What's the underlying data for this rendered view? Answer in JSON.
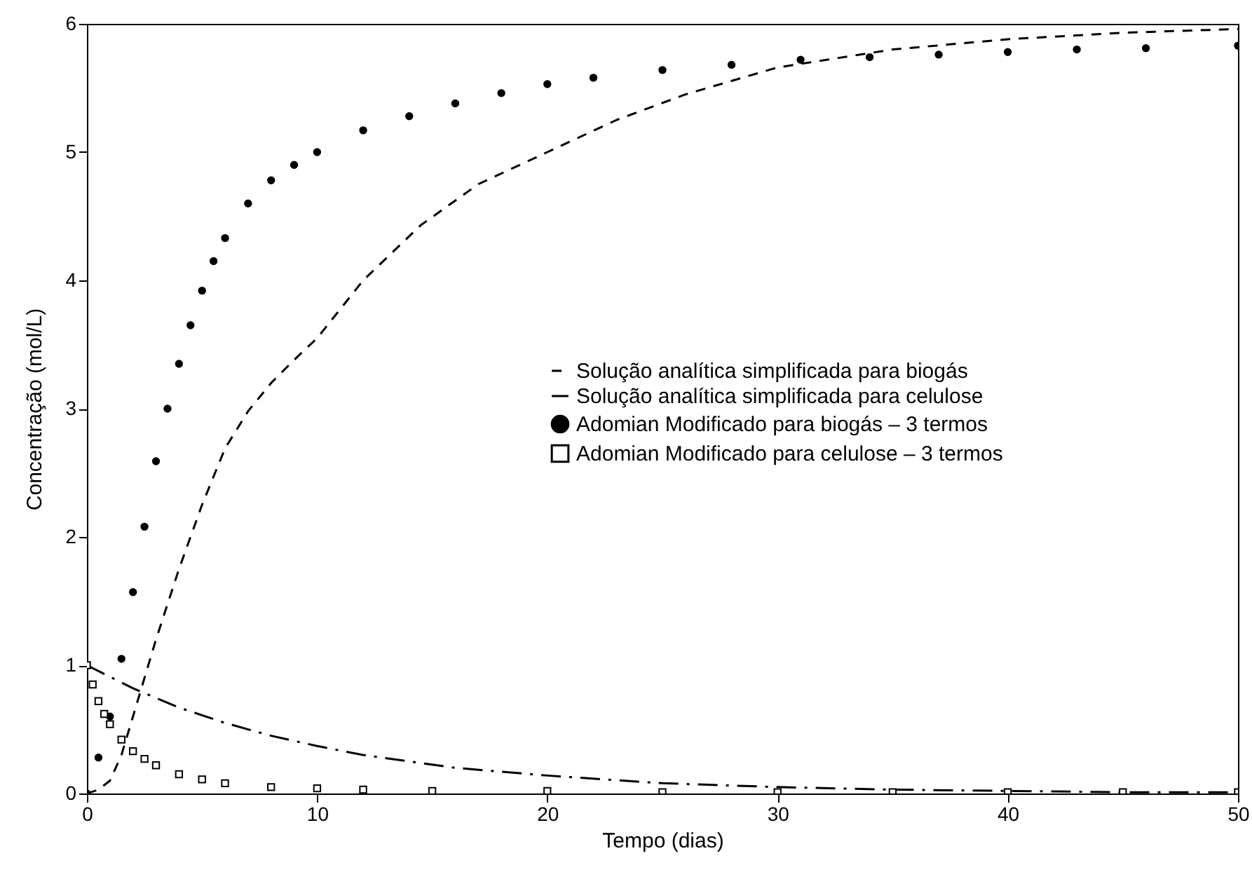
{
  "chart_data": {
    "type": "line",
    "xlabel": "Tempo (dias)",
    "ylabel": "Concentração (mol/L)",
    "xlim": [
      0,
      50
    ],
    "ylim": [
      0,
      6
    ],
    "xticks": [
      0,
      10,
      20,
      30,
      40,
      50
    ],
    "yticks": [
      0,
      1,
      2,
      3,
      4,
      5,
      6
    ],
    "grid": false,
    "legend": "right",
    "series": [
      {
        "name": "Solução analítica simplificada para biogás",
        "type": "line",
        "line_style": "dashed",
        "color": "#000000",
        "x": [
          0,
          0.5,
          1,
          1.5,
          2,
          2.5,
          3,
          4,
          5,
          6,
          7,
          8,
          9,
          10,
          12,
          14.5,
          17,
          20,
          23,
          26,
          30,
          35,
          40,
          45,
          50
        ],
        "values": [
          0,
          0.03,
          0.1,
          0.3,
          0.6,
          0.9,
          1.2,
          1.75,
          2.25,
          2.69,
          2.98,
          3.2,
          3.38,
          3.55,
          4.0,
          4.43,
          4.75,
          5.0,
          5.25,
          5.45,
          5.66,
          5.8,
          5.88,
          5.93,
          5.96
        ]
      },
      {
        "name": "Solução analítica simplificada para celulose",
        "type": "line",
        "line_style": "dashdot",
        "color": "#000000",
        "x": [
          0,
          2,
          4,
          6,
          8,
          10,
          12,
          14,
          16,
          18,
          20,
          25,
          30,
          35,
          40,
          45,
          50
        ],
        "values": [
          1,
          0.82,
          0.67,
          0.55,
          0.45,
          0.37,
          0.3,
          0.25,
          0.2,
          0.17,
          0.14,
          0.08,
          0.05,
          0.03,
          0.02,
          0.01,
          0.01
        ]
      },
      {
        "name": "Adomian Modificado para biogás – 3 termos",
        "type": "scatter",
        "marker": "circle",
        "color": "#000000",
        "x": [
          0,
          0.5,
          1,
          1.5,
          2,
          2.5,
          3,
          3.5,
          4,
          4.5,
          5,
          5.5,
          6,
          7,
          8,
          9,
          10,
          12,
          14,
          16,
          18,
          20,
          22,
          25,
          28,
          31,
          34,
          37,
          40,
          43,
          46,
          50
        ],
        "values": [
          0,
          0.28,
          0.6,
          1.05,
          1.57,
          2.08,
          2.59,
          3.0,
          3.35,
          3.65,
          3.92,
          4.15,
          4.33,
          4.6,
          4.78,
          4.9,
          5.0,
          5.17,
          5.28,
          5.38,
          5.46,
          5.53,
          5.58,
          5.64,
          5.68,
          5.72,
          5.74,
          5.76,
          5.78,
          5.8,
          5.81,
          5.83
        ]
      },
      {
        "name": "Adomian Modificado para celulose – 3 termos",
        "type": "scatter",
        "marker": "square",
        "color": "#000000",
        "x": [
          0,
          0.25,
          0.5,
          0.75,
          1,
          1.5,
          2,
          2.5,
          3,
          4,
          5,
          6,
          8,
          10,
          12,
          15,
          20,
          25,
          30,
          35,
          40,
          45,
          50
        ],
        "values": [
          1,
          0.85,
          0.72,
          0.62,
          0.54,
          0.42,
          0.33,
          0.27,
          0.22,
          0.15,
          0.11,
          0.08,
          0.05,
          0.04,
          0.03,
          0.02,
          0.02,
          0.01,
          0.01,
          0.01,
          0.01,
          0.01,
          0.01
        ]
      }
    ]
  }
}
